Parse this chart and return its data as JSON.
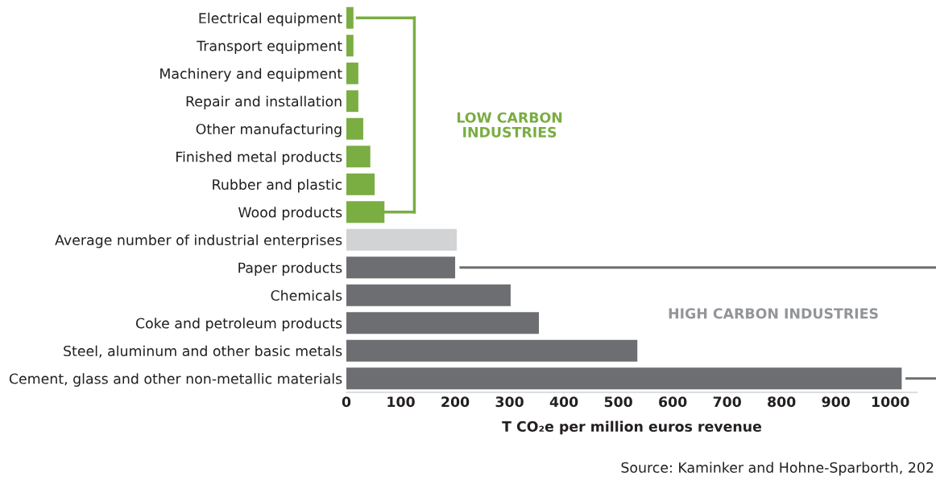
{
  "chart_data": {
    "type": "bar",
    "orientation": "horizontal",
    "categories": [
      "Electrical equipment",
      "Transport equipment",
      "Machinery and equipment",
      "Repair and installation",
      "Other manufacturing",
      "Finished metal products",
      "Rubber and plastic",
      "Wood products",
      "Average number of industrial enterprises",
      "Paper products",
      "Chemicals",
      "Coke and petroleum products",
      "Steel, aluminum and other basic metals",
      "Cement, glass and other non-metallic materials"
    ],
    "values": [
      13,
      13,
      22,
      22,
      31,
      44,
      52,
      70,
      203,
      200,
      302,
      354,
      535,
      1021
    ],
    "colors": [
      "#7aad42",
      "#7aad42",
      "#7aad42",
      "#7aad42",
      "#7aad42",
      "#7aad42",
      "#7aad42",
      "#7aad42",
      "#d1d3d4",
      "#6d6e71",
      "#6d6e71",
      "#6d6e71",
      "#6d6e71",
      "#6d6e71"
    ],
    "xlim": [
      0,
      1050
    ],
    "xticks": [
      0,
      100,
      200,
      300,
      400,
      500,
      600,
      700,
      800,
      900,
      1000
    ],
    "xlabel": "T CO₂e per million euros revenue",
    "grid": false,
    "legend": false,
    "annotations": [
      "LOW CARBON\nINDUSTRIES",
      "HIGH CARBON INDUSTRIES",
      "Source: Kaminker and Hohne-Sparborth, 202"
    ]
  }
}
